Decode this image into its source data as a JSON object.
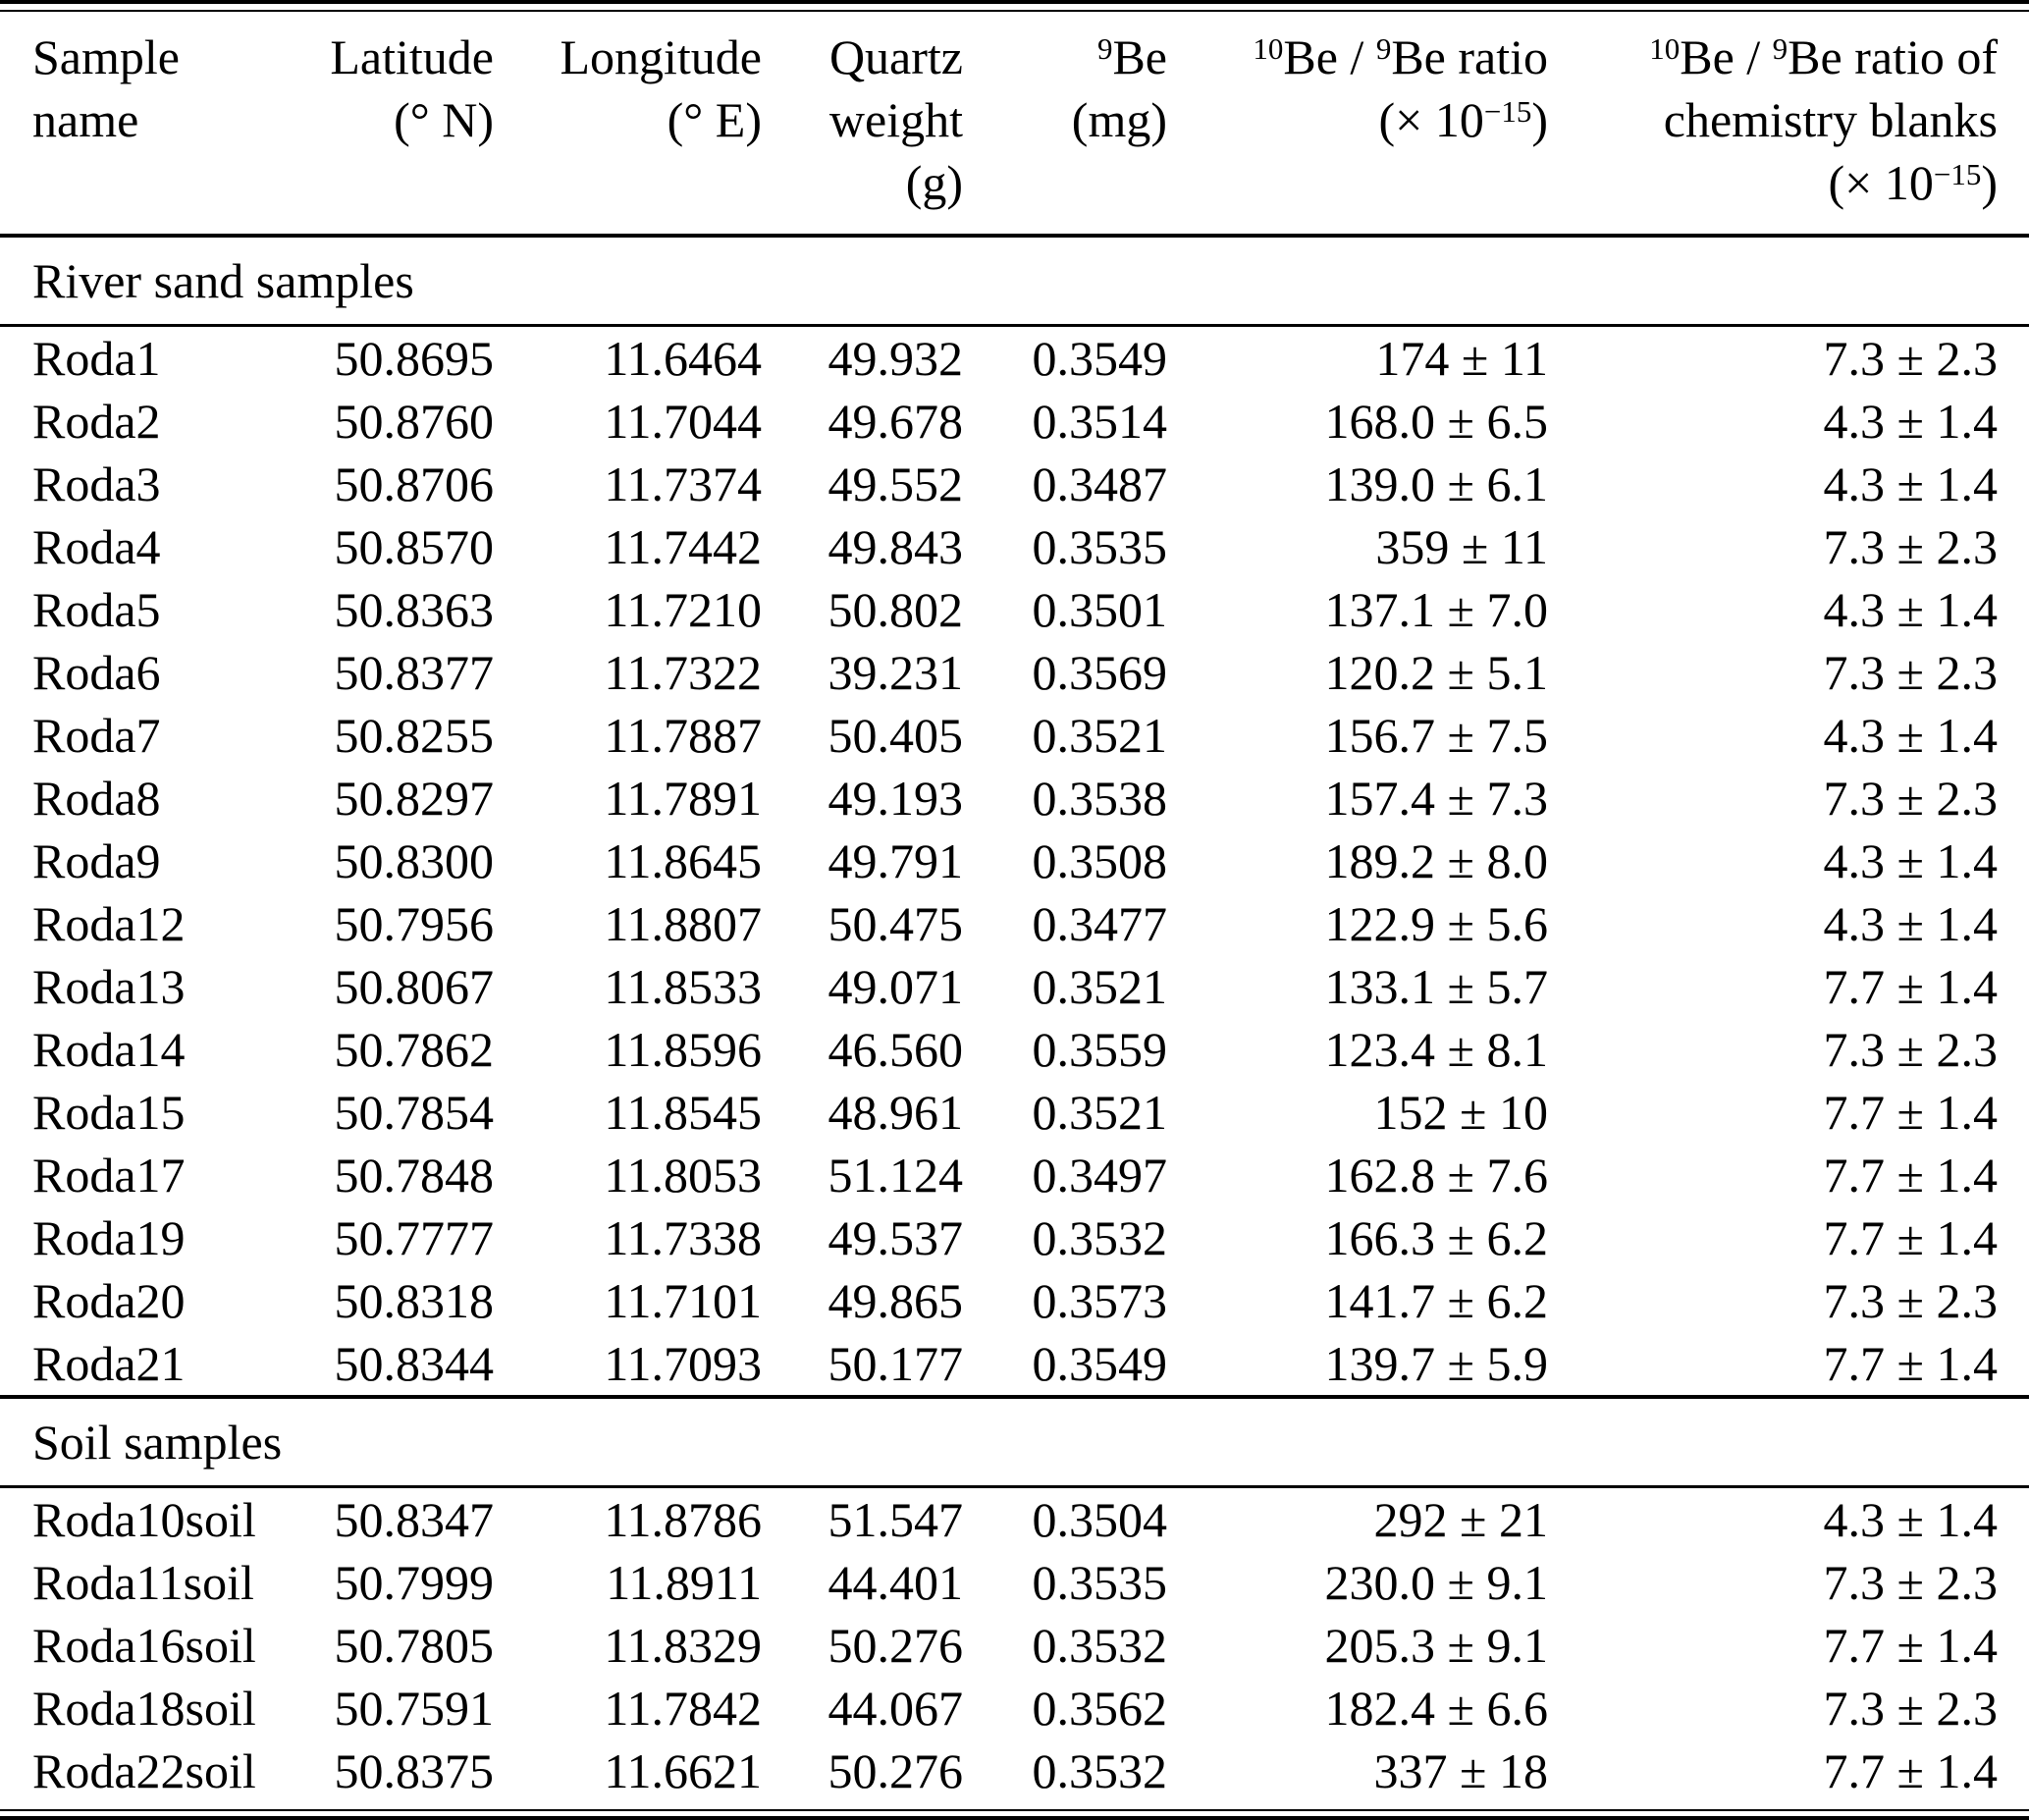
{
  "colors": {
    "background": "#ffffff",
    "text": "#000000",
    "rule": "#000000"
  },
  "table": {
    "columns": [
      {
        "id": "sample-name",
        "align": "left",
        "lines": [
          "Sample",
          "name"
        ]
      },
      {
        "id": "latitude",
        "align": "right",
        "lines": [
          "Latitude",
          "(° N)"
        ]
      },
      {
        "id": "longitude",
        "align": "right",
        "lines": [
          "Longitude",
          "(° E)"
        ]
      },
      {
        "id": "quartz-weight",
        "align": "right",
        "lines": [
          "Quartz",
          "weight",
          "(g)"
        ]
      },
      {
        "id": "be9",
        "align": "right",
        "lines": [
          "^{9}Be",
          "(mg)"
        ]
      },
      {
        "id": "be10-be9-ratio",
        "align": "right",
        "lines": [
          "^{10}Be / ^{9}Be ratio",
          "(× 10^{−15})"
        ]
      },
      {
        "id": "be10-be9-ratio-blanks",
        "align": "right",
        "lines": [
          "^{10}Be / ^{9}Be ratio of",
          "chemistry blanks",
          "(× 10^{−15})"
        ]
      }
    ],
    "sections": [
      {
        "title": "River sand samples",
        "rows": [
          [
            "Roda1",
            "50.8695",
            "11.6464",
            "49.932",
            "0.3549",
            "174 ± 11",
            "7.3 ± 2.3"
          ],
          [
            "Roda2",
            "50.8760",
            "11.7044",
            "49.678",
            "0.3514",
            "168.0 ± 6.5",
            "4.3 ± 1.4"
          ],
          [
            "Roda3",
            "50.8706",
            "11.7374",
            "49.552",
            "0.3487",
            "139.0 ± 6.1",
            "4.3 ± 1.4"
          ],
          [
            "Roda4",
            "50.8570",
            "11.7442",
            "49.843",
            "0.3535",
            "359 ± 11",
            "7.3 ± 2.3"
          ],
          [
            "Roda5",
            "50.8363",
            "11.7210",
            "50.802",
            "0.3501",
            "137.1 ± 7.0",
            "4.3 ± 1.4"
          ],
          [
            "Roda6",
            "50.8377",
            "11.7322",
            "39.231",
            "0.3569",
            "120.2 ± 5.1",
            "7.3 ± 2.3"
          ],
          [
            "Roda7",
            "50.8255",
            "11.7887",
            "50.405",
            "0.3521",
            "156.7 ± 7.5",
            "4.3 ± 1.4"
          ],
          [
            "Roda8",
            "50.8297",
            "11.7891",
            "49.193",
            "0.3538",
            "157.4 ± 7.3",
            "7.3 ± 2.3"
          ],
          [
            "Roda9",
            "50.8300",
            "11.8645",
            "49.791",
            "0.3508",
            "189.2 ± 8.0",
            "4.3 ± 1.4"
          ],
          [
            "Roda12",
            "50.7956",
            "11.8807",
            "50.475",
            "0.3477",
            "122.9 ± 5.6",
            "4.3 ± 1.4"
          ],
          [
            "Roda13",
            "50.8067",
            "11.8533",
            "49.071",
            "0.3521",
            "133.1 ± 5.7",
            "7.7 ± 1.4"
          ],
          [
            "Roda14",
            "50.7862",
            "11.8596",
            "46.560",
            "0.3559",
            "123.4 ± 8.1",
            "7.3 ± 2.3"
          ],
          [
            "Roda15",
            "50.7854",
            "11.8545",
            "48.961",
            "0.3521",
            "152 ± 10",
            "7.7 ± 1.4"
          ],
          [
            "Roda17",
            "50.7848",
            "11.8053",
            "51.124",
            "0.3497",
            "162.8 ± 7.6",
            "7.7 ± 1.4"
          ],
          [
            "Roda19",
            "50.7777",
            "11.7338",
            "49.537",
            "0.3532",
            "166.3 ± 6.2",
            "7.7 ± 1.4"
          ],
          [
            "Roda20",
            "50.8318",
            "11.7101",
            "49.865",
            "0.3573",
            "141.7 ± 6.2",
            "7.3 ± 2.3"
          ],
          [
            "Roda21",
            "50.8344",
            "11.7093",
            "50.177",
            "0.3549",
            "139.7 ± 5.9",
            "7.7 ± 1.4"
          ]
        ]
      },
      {
        "title": "Soil samples",
        "rows": [
          [
            "Roda10soil",
            "50.8347",
            "11.8786",
            "51.547",
            "0.3504",
            "292 ± 21",
            "4.3 ± 1.4"
          ],
          [
            "Roda11soil",
            "50.7999",
            "11.8911",
            "44.401",
            "0.3535",
            "230.0 ± 9.1",
            "7.3 ± 2.3"
          ],
          [
            "Roda16soil",
            "50.7805",
            "11.8329",
            "50.276",
            "0.3532",
            "205.3 ± 9.1",
            "7.7 ± 1.4"
          ],
          [
            "Roda18soil",
            "50.7591",
            "11.7842",
            "44.067",
            "0.3562",
            "182.4 ± 6.6",
            "7.3 ± 2.3"
          ],
          [
            "Roda22soil",
            "50.8375",
            "11.6621",
            "50.276",
            "0.3532",
            "337 ± 18",
            "7.7 ± 1.4"
          ]
        ]
      }
    ]
  }
}
